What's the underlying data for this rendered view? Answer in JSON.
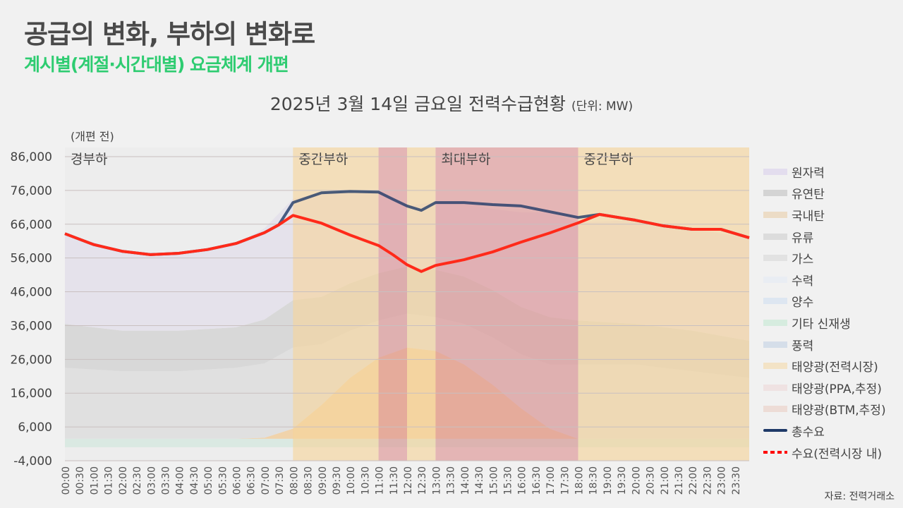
{
  "header": {
    "title": "공급의 변화, 부하의 변화로",
    "subtitle": "계시별(계절·시간대별) 요금체계 개편"
  },
  "chart_title": {
    "main": "2025년 3월 14일 금요일 전력수급현황",
    "unit": "(단위: MW)"
  },
  "note": "(개편 전)",
  "source": "자료: 전력거래소",
  "chart_data": {
    "type": "area",
    "title": "2025년 3월 14일 금요일 전력수급현황",
    "ylabel": "MW",
    "ylim": [
      -4000,
      86000
    ],
    "yticks": [
      "86,000",
      "76,000",
      "66,000",
      "56,000",
      "46,000",
      "36,000",
      "26,000",
      "16,000",
      "6,000",
      "-4,000"
    ],
    "ytick_values": [
      86000,
      76000,
      66000,
      56000,
      46000,
      36000,
      26000,
      16000,
      6000,
      -4000
    ],
    "xticks": [
      "00:00",
      "00:30",
      "01:00",
      "01:30",
      "02:00",
      "02:30",
      "03:00",
      "03:30",
      "04:00",
      "04:30",
      "05:00",
      "05:30",
      "06:00",
      "06:30",
      "07:00",
      "07:30",
      "08:00",
      "08:30",
      "09:00",
      "09:30",
      "10:00",
      "10:30",
      "11:00",
      "11:30",
      "12:00",
      "12:30",
      "13:00",
      "13:30",
      "14:00",
      "14:30",
      "15:00",
      "15:30",
      "16:00",
      "16:30",
      "17:00",
      "17:30",
      "18:00",
      "18:30",
      "19:00",
      "19:30",
      "20:00",
      "20:30",
      "21:00",
      "21:30",
      "22:00",
      "22:30",
      "23:00",
      "23:30"
    ],
    "x_hours": [
      0,
      1,
      2,
      3,
      4,
      5,
      6,
      7,
      7.5,
      8,
      9,
      10,
      11,
      11.5,
      12,
      12.5,
      13,
      14,
      15,
      16,
      17,
      18,
      18.75,
      20,
      21,
      22,
      23,
      24
    ],
    "periods": [
      {
        "label": "경부하",
        "start": 0,
        "end": 8,
        "color": "#e6e6e6"
      },
      {
        "label": "중간부하",
        "start": 8,
        "end": 11,
        "color": "#f3d7a7"
      },
      {
        "label": "",
        "start": 11,
        "end": 12,
        "color": "#dfa0a0"
      },
      {
        "label": "",
        "start": 12,
        "end": 13,
        "color": "#f3d7a7"
      },
      {
        "label": "최대부하",
        "start": 13,
        "end": 18,
        "color": "#dfa0a0"
      },
      {
        "label": "중간부하",
        "start": 18,
        "end": 24,
        "color": "#f3d7a7"
      }
    ],
    "lines": [
      {
        "name": "총수요",
        "color": "#1f3a68",
        "values": [
          63200,
          60000,
          58000,
          57000,
          57400,
          58500,
          60300,
          63500,
          65800,
          72400,
          75300,
          75700,
          75500,
          73400,
          71400,
          70100,
          72400,
          72400,
          71800,
          71400,
          69700,
          68000,
          68900,
          67200,
          65500,
          64500,
          64500,
          62000
        ]
      },
      {
        "name": "수요(전력시장 내)",
        "color": "#ff2a1a",
        "values": [
          63200,
          60000,
          58000,
          57000,
          57400,
          58500,
          60300,
          63500,
          65800,
          68600,
          66300,
          62800,
          59700,
          57000,
          54000,
          52000,
          53800,
          55500,
          57800,
          60700,
          63400,
          66400,
          68900,
          67200,
          65500,
          64500,
          64500,
          62000
        ]
      }
    ],
    "stack_hours": [
      0,
      2,
      4,
      6,
      7,
      8,
      9,
      10,
      11,
      12,
      13,
      14,
      15,
      16,
      17,
      18,
      20,
      22,
      24
    ],
    "stacks": [
      {
        "name": "기타 신재생",
        "color": "#d4ebe0",
        "values": [
          2500,
          2500,
          2500,
          2500,
          2500,
          2500,
          2500,
          2500,
          2500,
          2500,
          2500,
          2500,
          2500,
          2500,
          2500,
          2500,
          2500,
          2500,
          2500
        ]
      },
      {
        "name": "태양광(전력시장)",
        "color": "#f6c98d",
        "values": [
          0,
          0,
          0,
          0,
          300,
          3000,
          10000,
          18000,
          24000,
          27000,
          26000,
          22000,
          16000,
          9000,
          3000,
          0,
          0,
          0,
          0
        ]
      },
      {
        "name": "가스",
        "color": "#dedede",
        "values": [
          21000,
          20000,
          20000,
          21000,
          22000,
          24000,
          18000,
          14000,
          11000,
          10000,
          10000,
          12000,
          14000,
          16000,
          19000,
          22000,
          22000,
          20000,
          18000
        ]
      },
      {
        "name": "유연탄",
        "color": "#d2d2d2",
        "values": [
          13000,
          12000,
          12000,
          12000,
          13000,
          14000,
          14000,
          14000,
          14000,
          14000,
          14000,
          14000,
          14000,
          14000,
          14000,
          13000,
          12000,
          12000,
          11000
        ]
      },
      {
        "name": "원자력",
        "color": "#e5e0ee",
        "values": [
          26700,
          23600,
          22600,
          24500,
          27000,
          30000,
          30800,
          27200,
          24000,
          18000,
          20000,
          22000,
          24000,
          28000,
          31000,
          29000,
          30700,
          30000,
          30500
        ]
      }
    ]
  },
  "legend": [
    {
      "label": "원자력",
      "color": "#e3ddee",
      "kind": "area"
    },
    {
      "label": "유연탄",
      "color": "#d4d4d4",
      "kind": "area"
    },
    {
      "label": "국내탄",
      "color": "#ecdcc6",
      "kind": "area"
    },
    {
      "label": "유류",
      "color": "#dcdcdc",
      "kind": "area"
    },
    {
      "label": "가스",
      "color": "#e2e2e2",
      "kind": "area"
    },
    {
      "label": "수력",
      "color": "#e9edf3",
      "kind": "area"
    },
    {
      "label": "양수",
      "color": "#dde6f1",
      "kind": "area"
    },
    {
      "label": "기타 신재생",
      "color": "#d6ecdf",
      "kind": "area"
    },
    {
      "label": "풍력",
      "color": "#d5dee9",
      "kind": "area"
    },
    {
      "label": "태양광(전력시장)",
      "color": "#f3e3c6",
      "kind": "area"
    },
    {
      "label": "태양광(PPA,추정)",
      "color": "#efe2e2",
      "kind": "area"
    },
    {
      "label": "태양광(BTM,추정)",
      "color": "#eddcd6",
      "kind": "area"
    },
    {
      "label": "총수요",
      "color": "#1f3a68",
      "kind": "line"
    },
    {
      "label": "수요(전력시장 내)",
      "color": "#ff0000",
      "kind": "dash"
    }
  ]
}
